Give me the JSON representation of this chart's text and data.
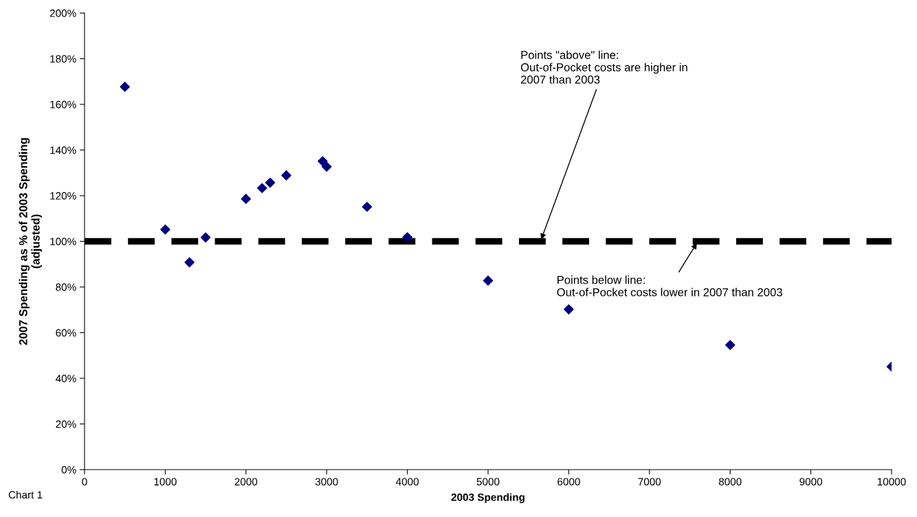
{
  "chart_data": {
    "type": "scatter",
    "xlabel": "2003 Spending",
    "ylabel": "2007 Spending as % of 2003 Spending\n(adjusted)",
    "x": [
      500,
      1000,
      1300,
      1500,
      2000,
      2200,
      2300,
      2500,
      2950,
      3000,
      3500,
      4000,
      5000,
      6000,
      8000,
      10000
    ],
    "series": [
      {
        "color": "#000080",
        "values": [
          167.7,
          105.2,
          90.8,
          101.7,
          118.6,
          123.3,
          125.7,
          128.9,
          135.1,
          132.7,
          115.1,
          101.8,
          82.8,
          70.2,
          54.6,
          45.1
        ]
      }
    ],
    "marker": "diamond",
    "grid": false,
    "xlim": [
      0,
      10000
    ],
    "xticks": [
      0,
      1000,
      2000,
      3000,
      4000,
      5000,
      6000,
      7000,
      8000,
      9000,
      10000
    ],
    "ylim": [
      0,
      200
    ],
    "yticks": [
      {
        "value": 0,
        "label": "0%"
      },
      {
        "value": 20,
        "label": "20%"
      },
      {
        "value": 40,
        "label": "40%"
      },
      {
        "value": 60,
        "label": "60%"
      },
      {
        "value": 80,
        "label": "80%"
      },
      {
        "value": 100,
        "label": "100%"
      },
      {
        "value": 120,
        "label": "120%"
      },
      {
        "value": 140,
        "label": "140%"
      },
      {
        "value": 160,
        "label": "160%"
      },
      {
        "value": 180,
        "label": "180%"
      },
      {
        "value": 200,
        "label": "200%"
      }
    ],
    "ref_lines": [
      {
        "axis": "y",
        "value": 100,
        "color": "#000000",
        "line_style": "dashed"
      }
    ],
    "annotations": [
      {
        "text": "Points \"above\" line:\nOut-of-Pocket costs are higher in\n2007 than 2003",
        "x": 5650,
        "y": 100
      },
      {
        "text": "Points below line:\nOut-of-Pocket costs lower in 2007 than 2003",
        "x": 7600,
        "y": 100
      },
      "Chart 1"
    ]
  }
}
